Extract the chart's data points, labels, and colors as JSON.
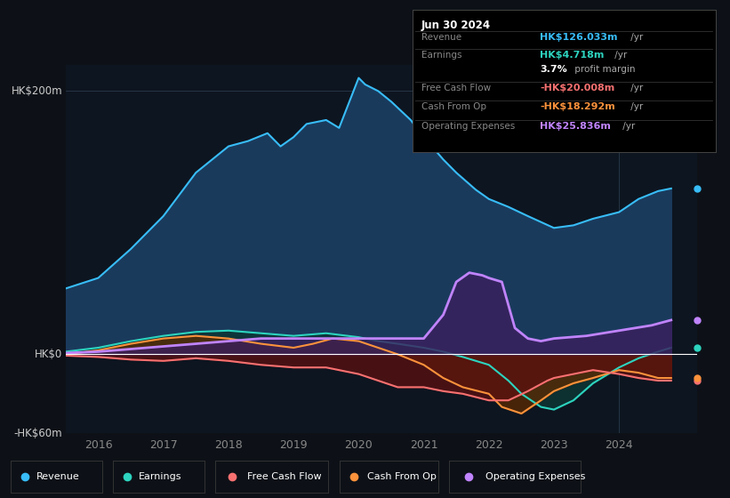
{
  "background_color": "#0d1117",
  "chart_bg": "#0d1520",
  "ylim": [
    -60,
    220
  ],
  "xlim": [
    2015.5,
    2025.2
  ],
  "xticks": [
    2016,
    2017,
    2018,
    2019,
    2020,
    2021,
    2022,
    2023,
    2024
  ],
  "info_box": {
    "date": "Jun 30 2024",
    "rows": [
      {
        "label": "Revenue",
        "value": "HK$126.033m",
        "suffix": " /yr",
        "color": "#38bdf8"
      },
      {
        "label": "Earnings",
        "value": "HK$4.718m",
        "suffix": " /yr",
        "color": "#2dd4bf"
      },
      {
        "label": "",
        "value": "3.7%",
        "suffix": " profit margin",
        "color": "#ffffff"
      },
      {
        "label": "Free Cash Flow",
        "value": "-HK$20.008m",
        "suffix": " /yr",
        "color": "#f87171"
      },
      {
        "label": "Cash From Op",
        "value": "-HK$18.292m",
        "suffix": " /yr",
        "color": "#fb923c"
      },
      {
        "label": "Operating Expenses",
        "value": "HK$25.836m",
        "suffix": " /yr",
        "color": "#c084fc"
      }
    ]
  },
  "series": {
    "revenue": {
      "color": "#38bdf8",
      "fill_color": "#1a3a5c",
      "x": [
        2015.5,
        2016.0,
        2016.5,
        2017.0,
        2017.5,
        2018.0,
        2018.3,
        2018.6,
        2018.8,
        2019.0,
        2019.2,
        2019.5,
        2019.7,
        2020.0,
        2020.1,
        2020.3,
        2020.5,
        2020.8,
        2021.0,
        2021.3,
        2021.5,
        2021.8,
        2022.0,
        2022.3,
        2022.6,
        2023.0,
        2023.3,
        2023.6,
        2024.0,
        2024.3,
        2024.6,
        2024.8
      ],
      "y": [
        50,
        58,
        80,
        105,
        138,
        158,
        162,
        168,
        158,
        165,
        175,
        178,
        172,
        210,
        205,
        200,
        192,
        178,
        165,
        148,
        138,
        125,
        118,
        112,
        105,
        96,
        98,
        103,
        108,
        118,
        124,
        126
      ]
    },
    "earnings": {
      "color": "#2dd4bf",
      "fill_color": "#0d3535",
      "x": [
        2015.5,
        2016.0,
        2016.5,
        2017.0,
        2017.5,
        2018.0,
        2018.5,
        2019.0,
        2019.5,
        2020.0,
        2020.3,
        2020.6,
        2021.0,
        2021.3,
        2021.6,
        2022.0,
        2022.3,
        2022.5,
        2022.8,
        2023.0,
        2023.3,
        2023.6,
        2024.0,
        2024.3,
        2024.6,
        2024.8
      ],
      "y": [
        2,
        5,
        10,
        14,
        17,
        18,
        16,
        14,
        16,
        13,
        10,
        8,
        5,
        2,
        -2,
        -8,
        -20,
        -30,
        -40,
        -42,
        -35,
        -22,
        -10,
        -3,
        2,
        5
      ]
    },
    "free_cash_flow": {
      "color": "#f87171",
      "fill_color": "#5c1010",
      "x": [
        2015.5,
        2016.0,
        2016.5,
        2017.0,
        2017.5,
        2018.0,
        2018.5,
        2019.0,
        2019.5,
        2020.0,
        2020.3,
        2020.6,
        2021.0,
        2021.3,
        2021.6,
        2022.0,
        2022.3,
        2022.6,
        2022.9,
        2023.0,
        2023.3,
        2023.6,
        2024.0,
        2024.3,
        2024.6,
        2024.8
      ],
      "y": [
        -1,
        -2,
        -4,
        -5,
        -3,
        -5,
        -8,
        -10,
        -10,
        -15,
        -20,
        -25,
        -25,
        -28,
        -30,
        -35,
        -35,
        -28,
        -20,
        -18,
        -15,
        -12,
        -15,
        -18,
        -20,
        -20
      ]
    },
    "cash_from_op": {
      "color": "#fb923c",
      "fill_color": "#5c2a00",
      "x": [
        2015.5,
        2016.0,
        2016.5,
        2017.0,
        2017.5,
        2018.0,
        2018.5,
        2019.0,
        2019.3,
        2019.6,
        2020.0,
        2020.3,
        2020.6,
        2021.0,
        2021.3,
        2021.6,
        2022.0,
        2022.2,
        2022.5,
        2022.8,
        2023.0,
        2023.3,
        2023.6,
        2024.0,
        2024.3,
        2024.6,
        2024.8
      ],
      "y": [
        0,
        3,
        8,
        12,
        14,
        12,
        8,
        5,
        8,
        12,
        10,
        5,
        0,
        -8,
        -18,
        -25,
        -30,
        -40,
        -45,
        -35,
        -28,
        -22,
        -18,
        -12,
        -14,
        -18,
        -18
      ]
    },
    "operating_expenses": {
      "color": "#c084fc",
      "fill_color": "#3b1f5e",
      "x": [
        2015.5,
        2016.0,
        2016.5,
        2017.0,
        2017.5,
        2018.0,
        2018.5,
        2019.0,
        2019.5,
        2020.0,
        2020.5,
        2021.0,
        2021.3,
        2021.5,
        2021.7,
        2021.9,
        2022.0,
        2022.2,
        2022.4,
        2022.6,
        2022.8,
        2023.0,
        2023.5,
        2024.0,
        2024.5,
        2024.8
      ],
      "y": [
        1,
        2,
        4,
        6,
        8,
        10,
        12,
        12,
        12,
        12,
        12,
        12,
        30,
        55,
        62,
        60,
        58,
        55,
        20,
        12,
        10,
        12,
        14,
        18,
        22,
        26
      ]
    }
  },
  "right_dots": [
    {
      "y": 126,
      "color": "#38bdf8"
    },
    {
      "y": 5,
      "color": "#2dd4bf"
    },
    {
      "y": -20,
      "color": "#f87171"
    },
    {
      "y": -18,
      "color": "#fb923c"
    },
    {
      "y": 26,
      "color": "#c084fc"
    }
  ],
  "legend": [
    {
      "label": "Revenue",
      "color": "#38bdf8"
    },
    {
      "label": "Earnings",
      "color": "#2dd4bf"
    },
    {
      "label": "Free Cash Flow",
      "color": "#f87171"
    },
    {
      "label": "Cash From Op",
      "color": "#fb923c"
    },
    {
      "label": "Operating Expenses",
      "color": "#c084fc"
    }
  ]
}
